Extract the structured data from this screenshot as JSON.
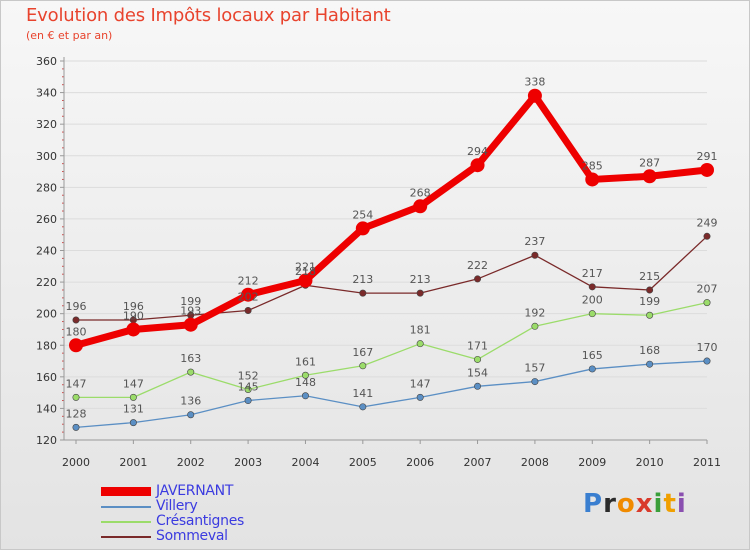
{
  "header": {
    "title": "Evolution des Impôts locaux par Habitant",
    "subtitle": "(en € et par an)"
  },
  "logo": {
    "letters": [
      "P",
      "r",
      "o",
      "x",
      "i",
      "t",
      "i"
    ],
    "colors": [
      "#3a7fd0",
      "#2b2b2b",
      "#f08a00",
      "#d93a2b",
      "#3a9f3a",
      "#f0a000",
      "#8a4fb0"
    ]
  },
  "chart_data": {
    "type": "line",
    "title": "Evolution des Impôts locaux par Habitant",
    "subtitle": "(en € et par an)",
    "xlabel": "",
    "ylabel": "",
    "categories": [
      "2000",
      "2001",
      "2002",
      "2003",
      "2004",
      "2005",
      "2006",
      "2007",
      "2008",
      "2009",
      "2010",
      "2011"
    ],
    "ylim": [
      120,
      360
    ],
    "yticks": [
      120,
      140,
      160,
      180,
      200,
      220,
      240,
      260,
      280,
      300,
      320,
      340,
      360
    ],
    "legend": "bottom-left",
    "series": [
      {
        "name": "JAVERNANT",
        "color": "#ee0000",
        "bold": true,
        "values": [
          180,
          190,
          193,
          212,
          221,
          254,
          268,
          294,
          338,
          285,
          287,
          291
        ]
      },
      {
        "name": "Villery",
        "color": "#5b8fc4",
        "values": [
          128,
          131,
          136,
          145,
          148,
          141,
          147,
          154,
          157,
          165,
          168,
          170
        ]
      },
      {
        "name": "Crésantignes",
        "color": "#9bdc6a",
        "values": [
          147,
          147,
          163,
          152,
          161,
          167,
          181,
          171,
          192,
          200,
          199,
          207
        ]
      },
      {
        "name": "Sommeval",
        "color": "#7a2a2a",
        "values": [
          196,
          196,
          199,
          202,
          218,
          213,
          213,
          222,
          237,
          217,
          215,
          249
        ]
      }
    ]
  }
}
